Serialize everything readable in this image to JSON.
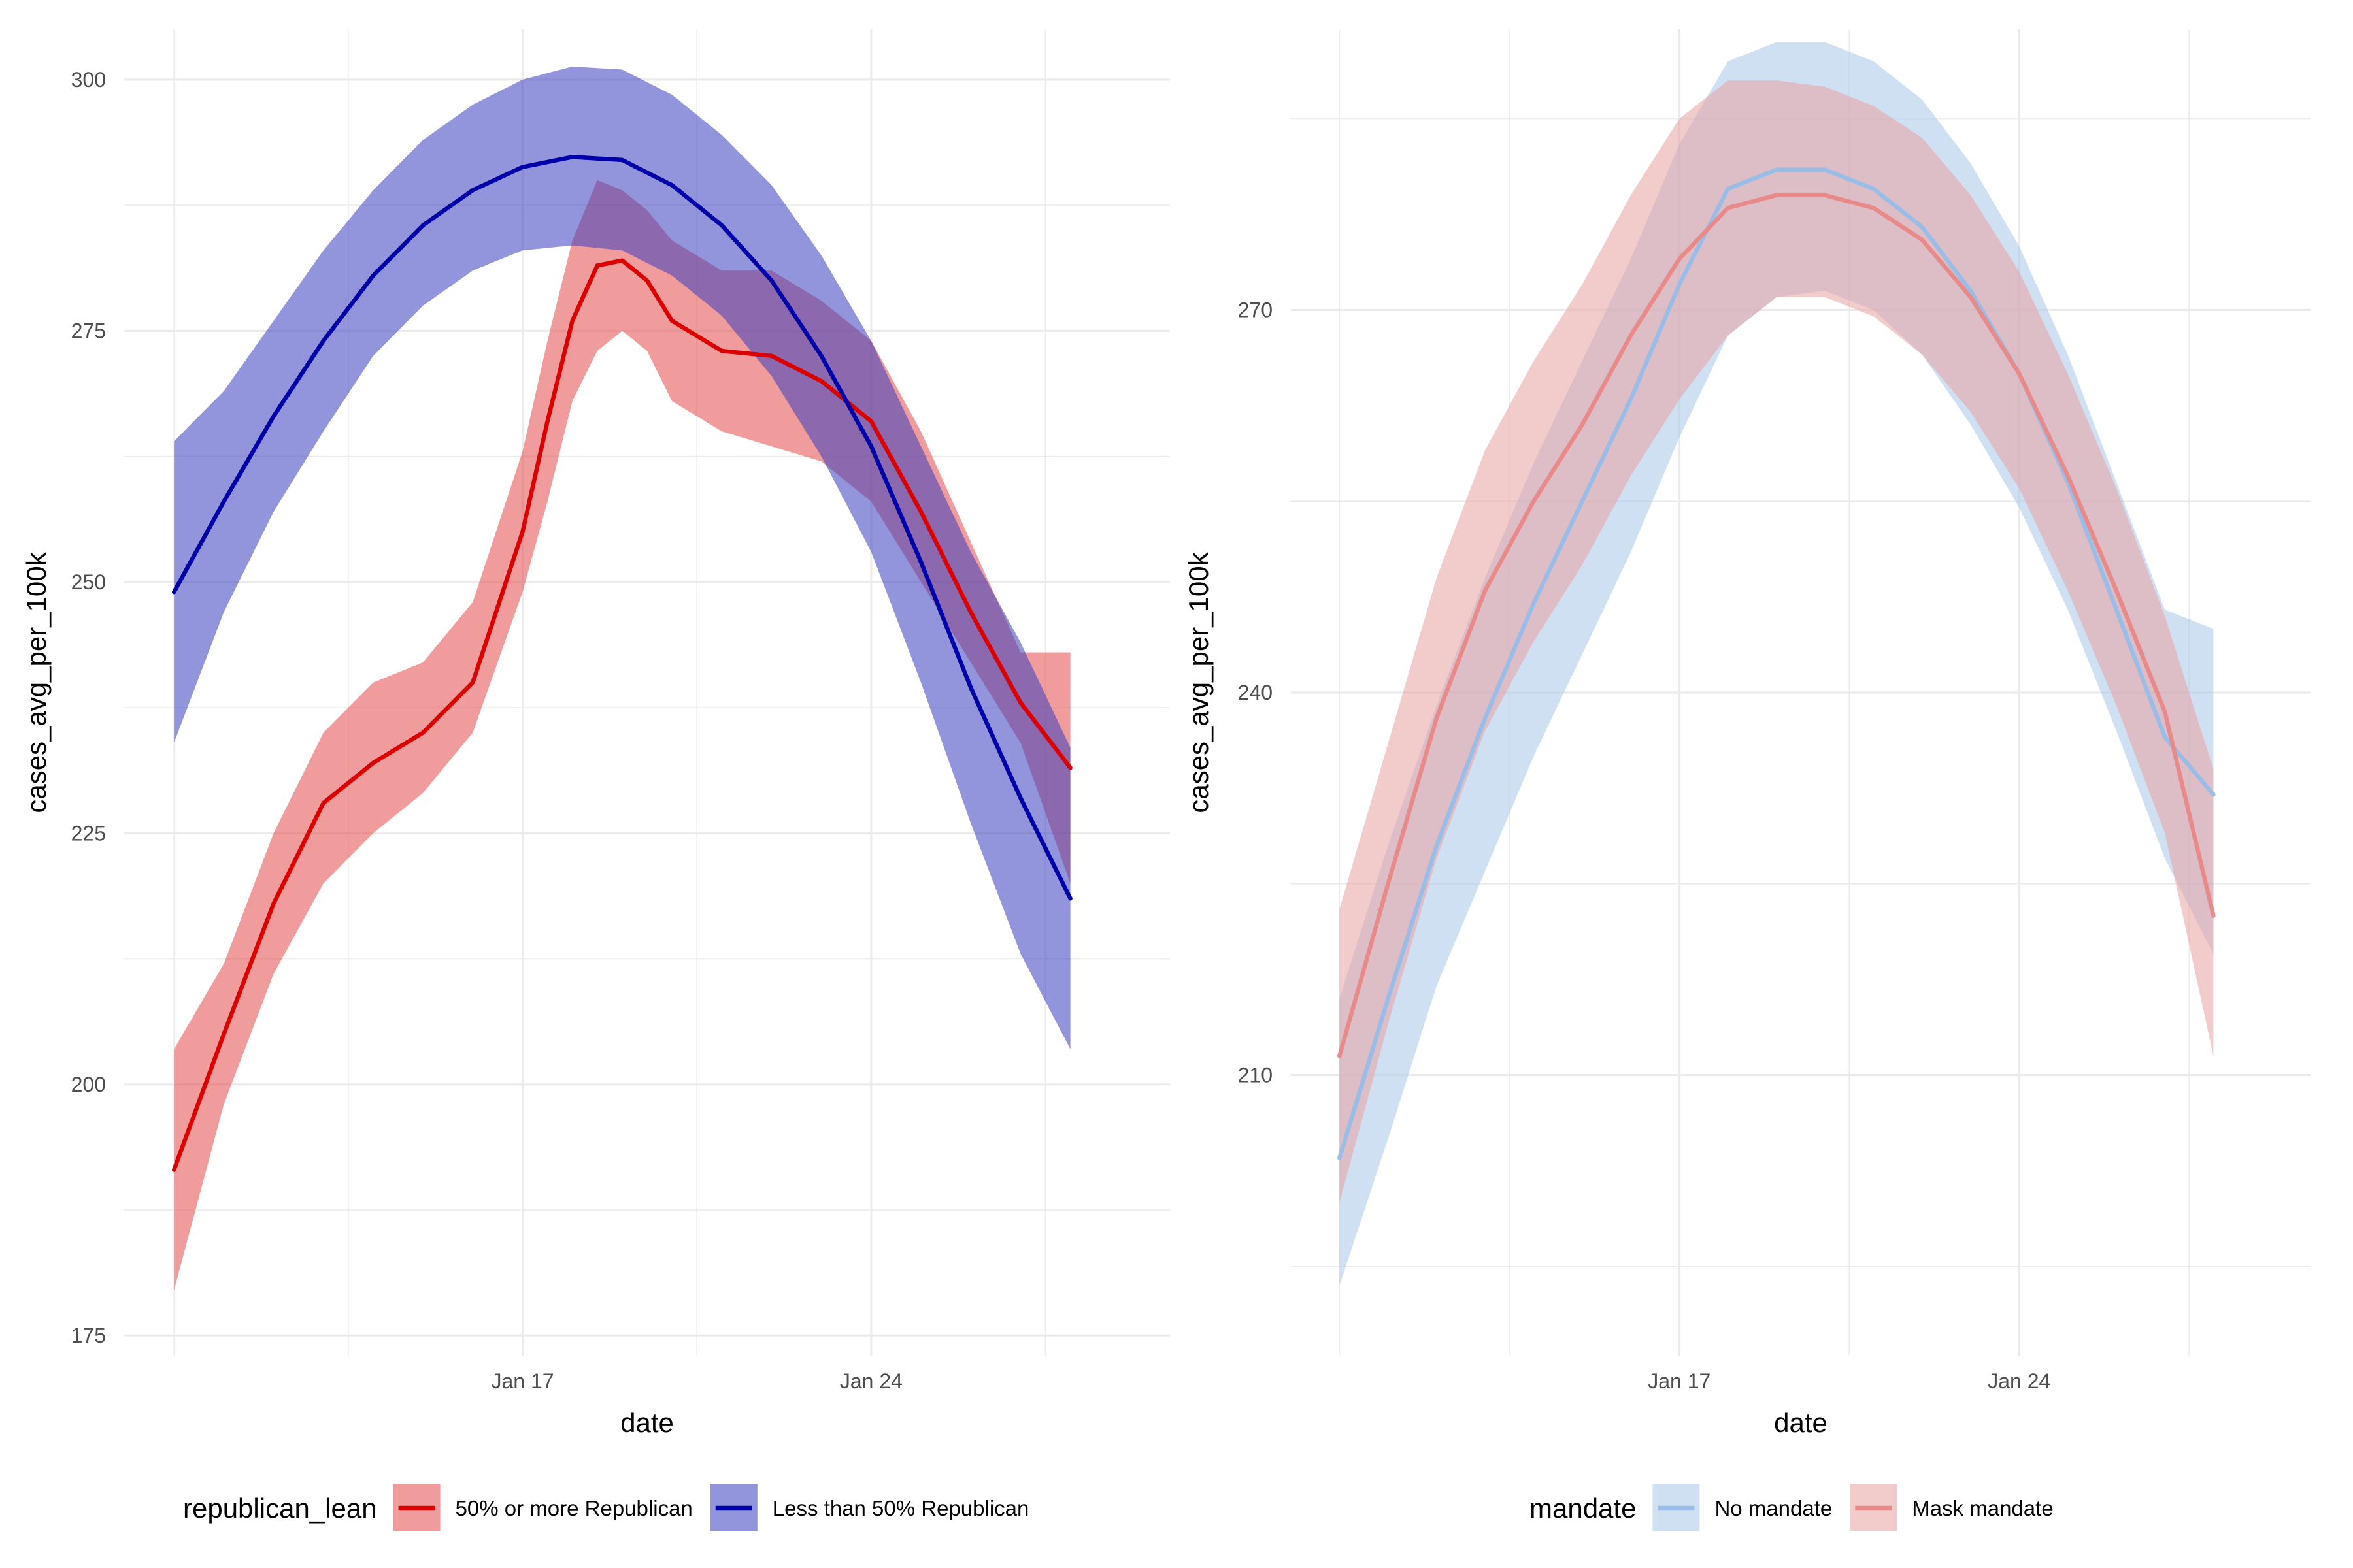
{
  "chart_data": [
    {
      "type": "line",
      "theme": "minimal",
      "xlabel": "date",
      "ylabel": "cases_avg_per_100k",
      "x_ticks": [
        "Jan 17",
        "Jan 24"
      ],
      "y_ticks": [
        175,
        200,
        225,
        250,
        275,
        300
      ],
      "ylim": [
        173,
        305
      ],
      "xlim": [
        "Jan 9",
        "Jan 30"
      ],
      "legend": {
        "title": "republican_lean",
        "position": "bottom"
      },
      "series": [
        {
          "name": "50% or more Republican",
          "color": "#dd0000",
          "fill": "#e34a4a",
          "x": [
            "Jan 10",
            "Jan 11",
            "Jan 12",
            "Jan 13",
            "Jan 14",
            "Jan 15",
            "Jan 16",
            "Jan 17",
            "Jan 17.5",
            "Jan 18",
            "Jan 18.5",
            "Jan 19",
            "Jan 19.5",
            "Jan 20",
            "Jan 21",
            "Jan 22",
            "Jan 23",
            "Jan 24",
            "Jan 25",
            "Jan 26",
            "Jan 27",
            "Jan 28"
          ],
          "y": [
            191.5,
            205,
            218,
            228,
            232,
            235,
            240,
            255,
            266,
            276,
            281.5,
            282,
            280,
            276,
            273,
            272.5,
            270,
            266,
            257,
            247,
            238,
            231.5
          ],
          "lower": [
            179.5,
            198,
            211,
            220,
            225,
            229,
            235,
            249,
            258,
            268,
            273,
            275,
            273,
            268,
            265,
            263.5,
            262,
            258,
            250,
            242,
            234,
            220
          ],
          "upper": [
            203.5,
            212,
            225,
            235,
            240,
            242,
            248,
            263,
            274,
            284,
            290,
            289,
            287,
            284,
            281,
            281,
            278,
            274,
            265,
            254,
            243,
            243
          ]
        },
        {
          "name": "Less than 50% Republican",
          "color": "#0000aa",
          "fill": "#3a3ec0",
          "x": [
            "Jan 10",
            "Jan 11",
            "Jan 12",
            "Jan 13",
            "Jan 14",
            "Jan 15",
            "Jan 16",
            "Jan 17",
            "Jan 18",
            "Jan 19",
            "Jan 20",
            "Jan 21",
            "Jan 22",
            "Jan 23",
            "Jan 24",
            "Jan 25",
            "Jan 26",
            "Jan 27",
            "Jan 28"
          ],
          "y": [
            249,
            258,
            266.5,
            274,
            280.5,
            285.5,
            289,
            291.3,
            292.3,
            292,
            289.5,
            285.5,
            280,
            272.5,
            263.5,
            252,
            239.5,
            228.5,
            218.5
          ],
          "lower": [
            234,
            247,
            257,
            265,
            272.5,
            277.5,
            281,
            283,
            283.5,
            283,
            280.5,
            276.5,
            270.5,
            262.5,
            253,
            240,
            226,
            213,
            203.5
          ],
          "upper": [
            264,
            269,
            276,
            283,
            289,
            294,
            297.5,
            300,
            301.3,
            301,
            298.5,
            294.5,
            289.5,
            282.5,
            274,
            263.5,
            253,
            244,
            233.5
          ]
        }
      ]
    },
    {
      "type": "line",
      "theme": "minimal",
      "xlabel": "date",
      "ylabel": "cases_avg_per_100k",
      "x_ticks": [
        "Jan 17",
        "Jan 24"
      ],
      "y_ticks": [
        210,
        240,
        270
      ],
      "ylim": [
        188,
        292
      ],
      "xlim": [
        "Jan 9",
        "Jan 30"
      ],
      "legend": {
        "title": "mandate",
        "position": "bottom"
      },
      "series": [
        {
          "name": "No mandate",
          "color": "#99bde6",
          "fill": "#a9c7ea",
          "x": [
            "Jan 10",
            "Jan 11",
            "Jan 12",
            "Jan 13",
            "Jan 14",
            "Jan 15",
            "Jan 16",
            "Jan 17",
            "Jan 18",
            "Jan 19",
            "Jan 20",
            "Jan 21",
            "Jan 22",
            "Jan 23",
            "Jan 24",
            "Jan 25",
            "Jan 26",
            "Jan 27",
            "Jan 28"
          ],
          "y": [
            203.5,
            216,
            228,
            238,
            247,
            255,
            263,
            272,
            279.5,
            281,
            281,
            279.5,
            276.5,
            271.5,
            265,
            256.5,
            246.5,
            236.5,
            232
          ],
          "lower": [
            193.5,
            205,
            217,
            226,
            235,
            243,
            251,
            260,
            268,
            271,
            271.5,
            270,
            266.5,
            261,
            254.5,
            246.5,
            237,
            227,
            219.5
          ],
          "upper": [
            216,
            228,
            239,
            249,
            258,
            266,
            274,
            283,
            289.5,
            291,
            291,
            289.5,
            286.5,
            281.5,
            275,
            266.5,
            256.5,
            246.5,
            245
          ]
        },
        {
          "name": "Mask mandate",
          "color": "#e88a8a",
          "fill": "#e8a0a0",
          "x": [
            "Jan 10",
            "Jan 11",
            "Jan 12",
            "Jan 13",
            "Jan 14",
            "Jan 15",
            "Jan 16",
            "Jan 17",
            "Jan 18",
            "Jan 19",
            "Jan 20",
            "Jan 21",
            "Jan 22",
            "Jan 23",
            "Jan 24",
            "Jan 25",
            "Jan 26",
            "Jan 27",
            "Jan 28"
          ],
          "y": [
            211.5,
            225,
            238,
            248,
            255,
            261,
            268,
            274,
            278,
            279,
            279,
            278,
            275.5,
            271,
            265,
            257,
            248,
            238.5,
            222.5
          ],
          "lower": [
            200,
            214,
            227,
            237,
            244,
            250,
            257,
            263,
            268,
            271,
            271,
            269.5,
            266.5,
            262,
            256,
            248,
            239,
            229,
            211.5
          ],
          "upper": [
            223,
            236,
            249,
            259,
            266,
            272,
            279,
            285,
            288,
            288,
            287.5,
            286,
            283.5,
            279,
            273,
            265,
            256,
            246,
            234
          ]
        }
      ]
    }
  ]
}
